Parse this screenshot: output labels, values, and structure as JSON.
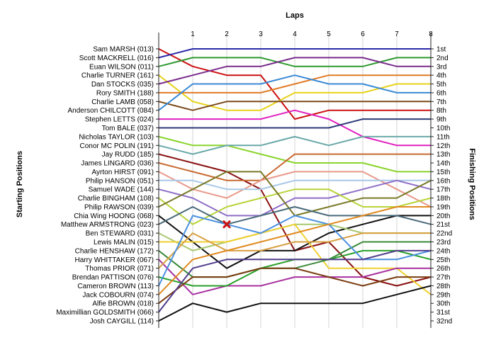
{
  "chart_data": {
    "type": "line",
    "title": "",
    "xlabel": "Laps",
    "ylabel_left": "Starting Positions",
    "ylabel_right": "Finishing Positions",
    "x": [
      0,
      1,
      2,
      3,
      4,
      5,
      6,
      7,
      8
    ],
    "x_tick_labels": [
      "1",
      "2",
      "3",
      "4",
      "5",
      "6",
      "7",
      "8"
    ],
    "y_range": [
      1,
      32
    ],
    "y_inverted": true,
    "grid": "vertical",
    "legend": "none",
    "finishing_labels": [
      "1st",
      "2nd",
      "3rd",
      "4th",
      "5th",
      "6th",
      "7th",
      "8th",
      "9th",
      "10th",
      "11th",
      "12th",
      "13th",
      "14th",
      "15th",
      "16th",
      "17th",
      "18th",
      "19th",
      "20th",
      "21st",
      "22nd",
      "23rd",
      "24th",
      "25th",
      "26th",
      "27th",
      "28th",
      "29th",
      "30th",
      "31st",
      "32nd"
    ],
    "drivers": [
      {
        "name": "Sam MARSH (013)",
        "color": "#cc1111",
        "positions": [
          1,
          3,
          4,
          4,
          9,
          8,
          8,
          8,
          8
        ]
      },
      {
        "name": "Scott MACKRELL (016)",
        "color": "#2a2aa8",
        "positions": [
          2,
          1,
          1,
          1,
          1,
          1,
          1,
          1,
          1
        ]
      },
      {
        "name": "Euan WILSON (011)",
        "color": "#2e9a2e",
        "positions": [
          3,
          2,
          2,
          2,
          3,
          3,
          3,
          2,
          2
        ]
      },
      {
        "name": "Charlie TURNER (161)",
        "color": "#e6d21a",
        "positions": [
          4,
          7,
          8,
          8,
          6,
          6,
          6,
          5,
          5
        ]
      },
      {
        "name": "Dan STOCKS (035)",
        "color": "#7a2c8c",
        "positions": [
          5,
          4,
          3,
          3,
          2,
          2,
          2,
          3,
          3
        ]
      },
      {
        "name": "Rory SMITH (188)",
        "color": "#e07b26",
        "positions": [
          6,
          6,
          6,
          6,
          5,
          4,
          4,
          4,
          4
        ]
      },
      {
        "name": "Charlie LAMB (058)",
        "color": "#7a4a1a",
        "positions": [
          7,
          8,
          7,
          7,
          7,
          7,
          7,
          7,
          7
        ]
      },
      {
        "name": "Anderson CHILCOTT (084)",
        "color": "#3a8ad6",
        "positions": [
          8,
          5,
          5,
          5,
          4,
          5,
          5,
          6,
          6
        ]
      },
      {
        "name": "Stephen LETTS (024)",
        "color": "#e020c0",
        "positions": [
          9,
          9,
          9,
          9,
          8,
          9,
          11,
          12,
          12
        ]
      },
      {
        "name": "Tom BALE (037)",
        "color": "#2c3a78",
        "positions": [
          10,
          10,
          10,
          10,
          10,
          10,
          9,
          9,
          9
        ]
      },
      {
        "name": "Nicholas TAYLOR (103)",
        "color": "#8ad42c",
        "positions": [
          11,
          12,
          12,
          13,
          14,
          14,
          14,
          15,
          15
        ]
      },
      {
        "name": "Conor MC POLIN (191)",
        "color": "#6aa8a8",
        "positions": [
          12,
          13,
          12,
          12,
          11,
          12,
          11,
          11,
          11
        ]
      },
      {
        "name": "Jay RUDD (185)",
        "color": "#8a1010",
        "positions": [
          13,
          14,
          15,
          17,
          24,
          23,
          27,
          28,
          27
        ]
      },
      {
        "name": "James LINGARD (036)",
        "color": "#c86a30",
        "positions": [
          14,
          15,
          16,
          16,
          13,
          13,
          13,
          13,
          13
        ]
      },
      {
        "name": "Ayrton HIRST (091)",
        "color": "#e89a8a",
        "positions": [
          15,
          17,
          18,
          16,
          15,
          15,
          15,
          17,
          19
        ]
      },
      {
        "name": "Philip HANSON (051)",
        "color": "#a8c8e8",
        "positions": [
          16,
          16,
          17,
          17,
          16,
          16,
          16,
          16,
          16
        ]
      },
      {
        "name": "Samuel WADE (144)",
        "color": "#8e6ec8",
        "positions": [
          17,
          18,
          20,
          20,
          18,
          18,
          17,
          16,
          17
        ]
      },
      {
        "name": "Charlie BINGHAM (108)",
        "color": "#b8d43a",
        "positions": [
          18,
          21,
          19,
          18,
          17,
          17,
          19,
          19,
          18
        ]
      },
      {
        "name": "Philip RAWSON (039)",
        "color": "#7a7a28",
        "positions": [
          19,
          17,
          15,
          15,
          20,
          19,
          18,
          18,
          16
        ]
      },
      {
        "name": "Chia Wing HOONG (068)",
        "color": "#101010",
        "positions": [
          20,
          23,
          26,
          24,
          24,
          22,
          21,
          20,
          20
        ]
      },
      {
        "name": "Matthew ARMSTRONG (023)",
        "color": "#4a6a7a",
        "positions": [
          21,
          19,
          21,
          20,
          19,
          20,
          20,
          20,
          21
        ]
      },
      {
        "name": "Ben STEWARD (031)",
        "color": "#a8c870",
        "positions": [
          22,
          24,
          23,
          22,
          21,
          21,
          22,
          22,
          22
        ]
      },
      {
        "name": "Lewis MALIN (015)",
        "color": "#f0d030",
        "positions": [
          23,
          23,
          23,
          22,
          21,
          26,
          26,
          26,
          29
        ]
      },
      {
        "name": "Charlie HENSHAW (172)",
        "color": "#3a8a3a",
        "positions": [
          24,
          27,
          27,
          26,
          26,
          25,
          23,
          23,
          23
        ]
      },
      {
        "name": "Harry WHITTAKER (067)",
        "color": "#a830a0",
        "positions": [
          25,
          29,
          28,
          28,
          27,
          27,
          27,
          26,
          26
        ]
      },
      {
        "name": "Thomas PRIOR (071)",
        "color": "#d8a040",
        "positions": [
          26,
          22,
          24,
          24,
          23,
          23,
          22,
          22,
          22
        ]
      },
      {
        "name": "Brendan PATTISON (076)",
        "color": "#2aa02a",
        "positions": [
          27,
          28,
          28,
          26,
          25,
          25,
          24,
          24,
          25
        ]
      },
      {
        "name": "Cameron BROWN (113)",
        "color": "#4a90e0",
        "positions": [
          28,
          20,
          21,
          22,
          20,
          21,
          25,
          25,
          24
        ]
      },
      {
        "name": "Jack COBOURN (074)",
        "color": "#e08a20",
        "positions": [
          29,
          25,
          24,
          23,
          22,
          21,
          20,
          19,
          19
        ]
      },
      {
        "name": "Alfie BROWN (018)",
        "color": "#7a3c10",
        "positions": [
          30,
          27,
          27,
          26,
          26,
          27,
          28,
          27,
          27
        ]
      },
      {
        "name": "Maximillian GOLDSMITH (066)",
        "color": "#503c8c",
        "positions": [
          31,
          26,
          25,
          25,
          25,
          25,
          25,
          24,
          24
        ]
      },
      {
        "name": "Josh CAYGILL (114)",
        "color": "#101010",
        "positions": [
          32,
          30,
          31,
          30,
          30,
          30,
          30,
          29,
          28
        ]
      }
    ],
    "annotations": [
      {
        "type": "retirement-marker",
        "driver": "Ben STEWARD (031)",
        "lap": 2,
        "position": 21,
        "color": "#cc1111"
      }
    ]
  }
}
